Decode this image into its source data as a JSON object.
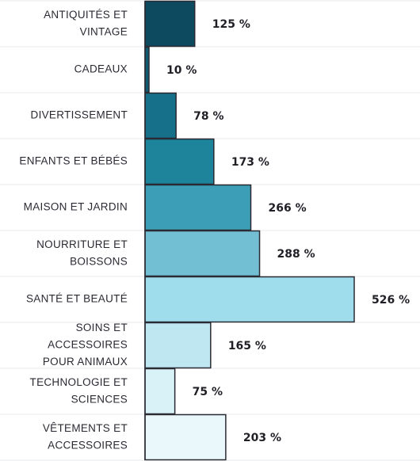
{
  "chart_data": {
    "type": "bar",
    "orientation": "horizontal",
    "categories": [
      "ANTIQUITÉS ET VINTAGE",
      "CADEAUX",
      "DIVERTISSEMENT",
      "ENFANTS ET BÉBÉS",
      "MAISON ET JARDIN",
      "NOURRITURE ET BOISSONS",
      "SANTÉ ET BEAUTÉ",
      "SOINS ET ACCESSOIRES POUR ANIMAUX",
      "TECHNOLOGIE ET SCIENCES",
      "VÊTEMENTS ET ACCESSOIRES"
    ],
    "category_lines": [
      [
        "ANTIQUITÉS ET",
        "VINTAGE"
      ],
      [
        "CADEAUX"
      ],
      [
        "DIVERTISSEMENT"
      ],
      [
        "ENFANTS ET BÉBÉS"
      ],
      [
        "MAISON ET JARDIN"
      ],
      [
        "NOURRITURE ET",
        "BOISSONS"
      ],
      [
        "SANTÉ ET BEAUTÉ"
      ],
      [
        "SOINS ET",
        "ACCESSOIRES",
        "POUR ANIMAUX"
      ],
      [
        "TECHNOLOGIE ET",
        "SCIENCES"
      ],
      [
        "VÊTEMENTS ET",
        "ACCESSOIRES"
      ]
    ],
    "values": [
      125,
      10,
      78,
      173,
      266,
      288,
      526,
      165,
      75,
      203
    ],
    "value_labels": [
      "125 %",
      "10 %",
      "78 %",
      "173 %",
      "266 %",
      "288 %",
      "526 %",
      "165 %",
      "75 %",
      "203 %"
    ],
    "bar_colors": [
      "#0d4a5f",
      "#0f5a70",
      "#16708a",
      "#1d849c",
      "#3d9fb7",
      "#72bed3",
      "#a0ddec",
      "#bee7f1",
      "#d9f2f8",
      "#eaf7fb"
    ],
    "xlim": [
      0,
      526
    ],
    "grid": true,
    "legend": "none"
  }
}
